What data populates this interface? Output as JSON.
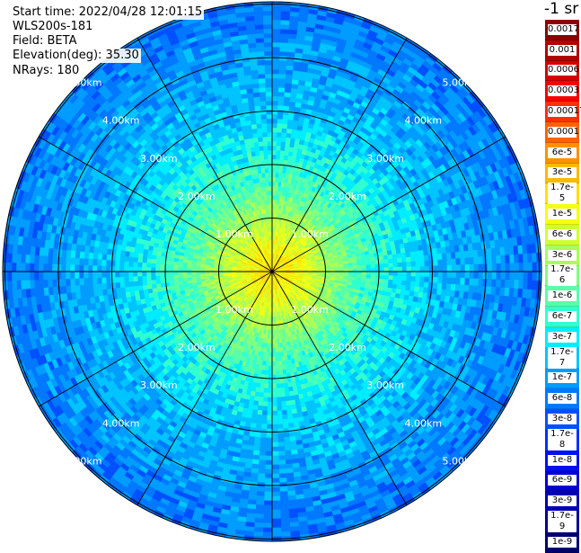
{
  "header": {
    "start_time": "Start time: 2022/04/28 12:01:15",
    "instrument": "WLS200s-181",
    "field": "Field: BETA",
    "elevation": "Elevation(deg): 35.30",
    "nrays": "NRays: 180"
  },
  "colorbar": {
    "unit": "-1 sr",
    "ticks": [
      "0.0017",
      "0.001",
      "0.0006",
      "0.0003",
      "0.00017",
      "0.0001",
      "6e-5",
      "3e-5",
      "1.7e-5",
      "1e-5",
      "6e-6",
      "3e-6",
      "1.7e-6",
      "1e-6",
      "6e-7",
      "3e-7",
      "1.7e-7",
      "1e-7",
      "6e-8",
      "3e-8",
      "1.7e-8",
      "1e-8",
      "6e-9",
      "3e-9",
      "1.7e-9",
      "1e-9"
    ],
    "colors": [
      "#8b0000",
      "#b20000",
      "#d40000",
      "#f50000",
      "#ff3000",
      "#ff6000",
      "#ff9000",
      "#ffb800",
      "#ffe000",
      "#f5ff10",
      "#d0ff30",
      "#a8ff58",
      "#80ff80",
      "#58ffa8",
      "#30ffd0",
      "#00ecff",
      "#00c4ff",
      "#009cff",
      "#0078ff",
      "#0050ff",
      "#0030ff",
      "#0010f0",
      "#0000d0",
      "#0000b0",
      "#000090",
      "#000070"
    ]
  },
  "chart_data": {
    "type": "heatmap",
    "title": "",
    "projection": "polar PPI",
    "nrays": 180,
    "range_rings_km": [
      1,
      2,
      3,
      4,
      5
    ],
    "ring_labels": [
      "1.00km",
      "2.00km",
      "3.00km",
      "4.00km",
      "5.00km"
    ],
    "radial_profile": [
      {
        "range_km": 0.0,
        "beta": "1.7e-5"
      },
      {
        "range_km": 0.5,
        "beta": "1e-5"
      },
      {
        "range_km": 1.0,
        "beta": "3e-6"
      },
      {
        "range_km": 1.5,
        "beta": "1e-6"
      },
      {
        "range_km": 2.0,
        "beta": "6e-7"
      },
      {
        "range_km": 2.5,
        "beta": "3e-7"
      },
      {
        "range_km": 3.0,
        "beta": "1.7e-7"
      },
      {
        "range_km": 4.0,
        "beta": "1e-7"
      },
      {
        "range_km": 5.0,
        "beta": "6e-8"
      },
      {
        "range_km": 5.8,
        "beta": "3e-8"
      }
    ]
  }
}
